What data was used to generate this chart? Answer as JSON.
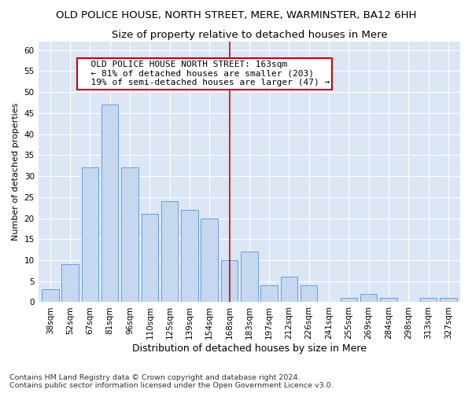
{
  "title": "OLD POLICE HOUSE, NORTH STREET, MERE, WARMINSTER, BA12 6HH",
  "subtitle": "Size of property relative to detached houses in Mere",
  "xlabel": "Distribution of detached houses by size in Mere",
  "ylabel": "Number of detached properties",
  "categories": [
    "38sqm",
    "52sqm",
    "67sqm",
    "81sqm",
    "96sqm",
    "110sqm",
    "125sqm",
    "139sqm",
    "154sqm",
    "168sqm",
    "183sqm",
    "197sqm",
    "212sqm",
    "226sqm",
    "241sqm",
    "255sqm",
    "269sqm",
    "284sqm",
    "298sqm",
    "313sqm",
    "327sqm"
  ],
  "values": [
    3,
    9,
    32,
    47,
    32,
    21,
    24,
    22,
    20,
    10,
    12,
    4,
    6,
    4,
    0,
    1,
    2,
    1,
    0,
    1,
    1
  ],
  "bar_color": "#c5d8f0",
  "bar_edge_color": "#6a9fd8",
  "bar_width": 0.85,
  "red_line_x": 9.0,
  "annotation_text": "  OLD POLICE HOUSE NORTH STREET: 163sqm\n  ← 81% of detached houses are smaller (203)\n  19% of semi-detached houses are larger (47) →",
  "annotation_box_facecolor": "#ffffff",
  "annotation_box_edgecolor": "#cc0000",
  "ylim": [
    0,
    62
  ],
  "yticks": [
    0,
    5,
    10,
    15,
    20,
    25,
    30,
    35,
    40,
    45,
    50,
    55,
    60
  ],
  "grid_color": "#ffffff",
  "background_color": "#dce6f5",
  "footer_line1": "Contains HM Land Registry data © Crown copyright and database right 2024.",
  "footer_line2": "Contains public sector information licensed under the Open Government Licence v3.0.",
  "title_fontsize": 9.5,
  "subtitle_fontsize": 9.5,
  "xlabel_fontsize": 9,
  "ylabel_fontsize": 8,
  "tick_fontsize": 7.5,
  "annotation_fontsize": 8,
  "footer_fontsize": 6.8
}
